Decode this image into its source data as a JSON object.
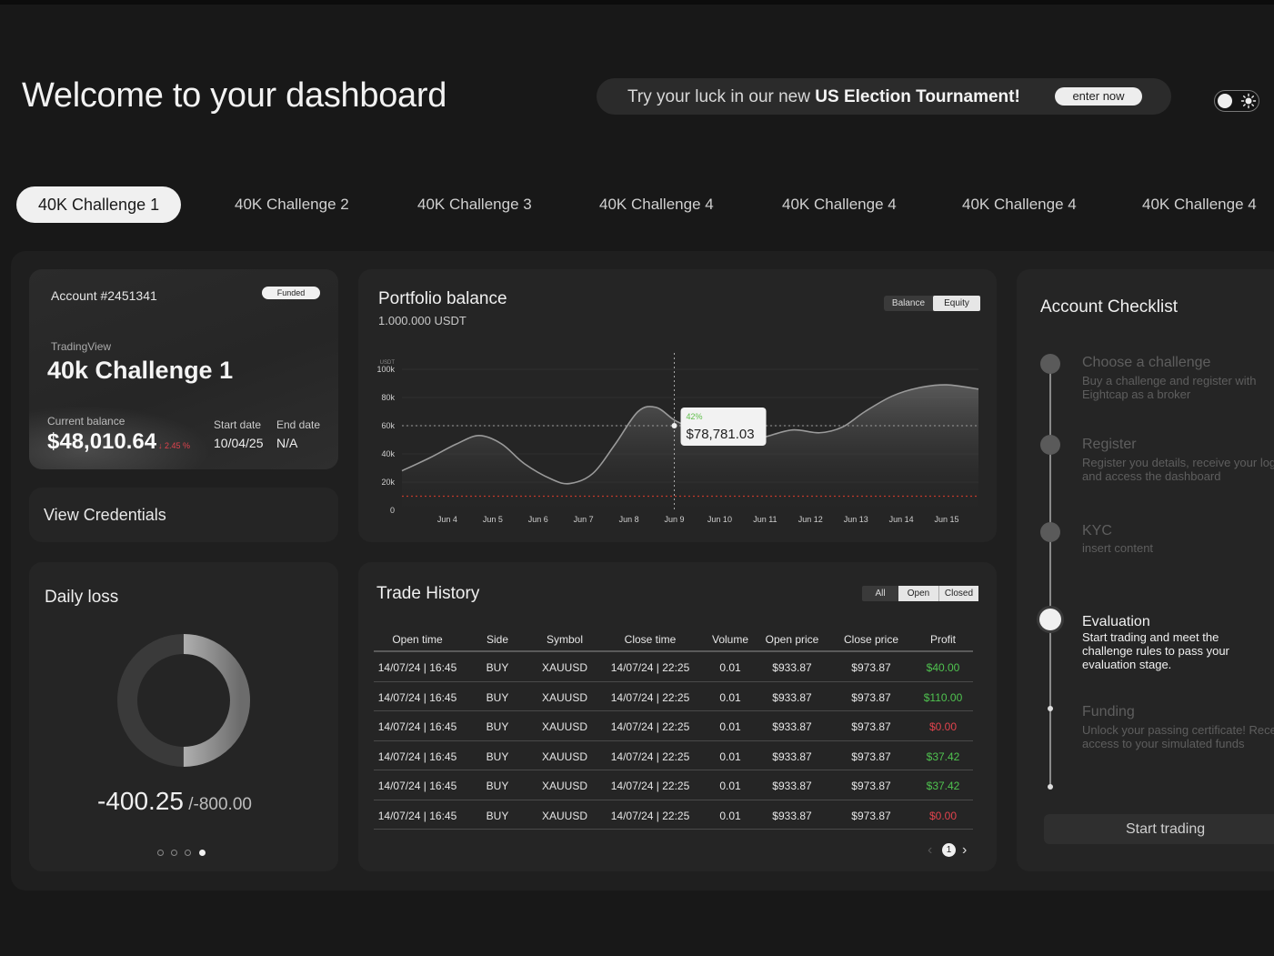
{
  "header": {
    "title": "Welcome to your dashboard",
    "promo_text": "Try your luck in our new ",
    "promo_bold": "US Election Tournament!",
    "promo_button": "enter now"
  },
  "tabs": [
    {
      "label": "40K Challenge 1",
      "active": true
    },
    {
      "label": "40K Challenge 2"
    },
    {
      "label": "40K Challenge 3"
    },
    {
      "label": "40K Challenge 4"
    },
    {
      "label": "40K Challenge 4"
    },
    {
      "label": "40K Challenge 4"
    },
    {
      "label": "40K Challenge 4"
    }
  ],
  "account": {
    "number": "Account #2451341",
    "badge": "Funded",
    "platform": "TradingView",
    "name": "40k Challenge 1",
    "balance_label": "Current balance",
    "balance": "$48,010.64",
    "change": "↓ 2.45 %",
    "start_label": "Start date",
    "start_value": "10/04/25",
    "end_label": "End date",
    "end_value": "N/A"
  },
  "credentials": {
    "label": "View Credentials"
  },
  "daily_loss": {
    "title": "Daily loss",
    "value": "-400.25",
    "max": " /-800.00",
    "fraction": 0.5,
    "pages": 4,
    "current_page": 4
  },
  "portfolio": {
    "title": "Portfolio balance",
    "subtitle": "1.000.000 USDT",
    "toggle": {
      "options": [
        "Balance",
        "Equity"
      ],
      "selected": "Equity"
    },
    "tooltip_pct": "42%",
    "tooltip_value": "$78,781.03",
    "colors": {
      "limit_line": "#c0392b",
      "accent_green": "#5fbf4a"
    }
  },
  "chart_data": {
    "type": "area",
    "x": [
      "Jun 4",
      "Jun 5",
      "Jun 6",
      "Jun 7",
      "Jun 8",
      "Jun 9",
      "Jun 10",
      "Jun 11",
      "Jun 12",
      "Jun 13",
      "Jun 14",
      "Jun 15"
    ],
    "y_tick_labels": [
      "0",
      "20k",
      "40k",
      "60k",
      "80k",
      "100k"
    ],
    "y_unit": "USDT",
    "ylim": [
      0,
      100000
    ],
    "x_start": 3.0,
    "x_end": 15.7,
    "points": [
      {
        "x": 3.0,
        "y": 28000
      },
      {
        "x": 3.6,
        "y": 37000
      },
      {
        "x": 4.2,
        "y": 47000
      },
      {
        "x": 4.7,
        "y": 53000
      },
      {
        "x": 5.2,
        "y": 47000
      },
      {
        "x": 5.7,
        "y": 33000
      },
      {
        "x": 6.3,
        "y": 22000
      },
      {
        "x": 6.7,
        "y": 19000
      },
      {
        "x": 7.2,
        "y": 26000
      },
      {
        "x": 7.7,
        "y": 47000
      },
      {
        "x": 8.2,
        "y": 70000
      },
      {
        "x": 8.6,
        "y": 73000
      },
      {
        "x": 9.0,
        "y": 64000
      },
      {
        "x": 9.4,
        "y": 58000
      },
      {
        "x": 9.9,
        "y": 50000
      },
      {
        "x": 10.5,
        "y": 48000
      },
      {
        "x": 11.0,
        "y": 52000
      },
      {
        "x": 11.6,
        "y": 57000
      },
      {
        "x": 12.2,
        "y": 55000
      },
      {
        "x": 12.7,
        "y": 59000
      },
      {
        "x": 13.2,
        "y": 70000
      },
      {
        "x": 13.8,
        "y": 81000
      },
      {
        "x": 14.4,
        "y": 87000
      },
      {
        "x": 15.0,
        "y": 89000
      },
      {
        "x": 15.7,
        "y": 86000
      }
    ],
    "reference_lines": [
      {
        "y": 60000,
        "style": "dotted"
      },
      {
        "y": 10000,
        "style": "dotted",
        "color": "#c0392b"
      }
    ],
    "crosshair_x": 9.0,
    "grid": true
  },
  "trades": {
    "title": "Trade History",
    "filter": {
      "options": [
        "All",
        "Open",
        "Closed"
      ],
      "selected": "All"
    },
    "columns": [
      "Open time",
      "Side",
      "Symbol",
      "Close time",
      "Volume",
      "Open price",
      "Close price",
      "Profit"
    ],
    "rows": [
      [
        "14/07/24 | 16:45",
        "BUY",
        "XAUUSD",
        "14/07/24 | 22:25",
        "0.01",
        "$933.87",
        "$973.87",
        "$40.00"
      ],
      [
        "14/07/24 | 16:45",
        "BUY",
        "XAUUSD",
        "14/07/24 | 22:25",
        "0.01",
        "$933.87",
        "$973.87",
        "$110.00"
      ],
      [
        "14/07/24 | 16:45",
        "BUY",
        "XAUUSD",
        "14/07/24 | 22:25",
        "0.01",
        "$933.87",
        "$973.87",
        "$0.00"
      ],
      [
        "14/07/24 | 16:45",
        "BUY",
        "XAUUSD",
        "14/07/24 | 22:25",
        "0.01",
        "$933.87",
        "$973.87",
        "$37.42"
      ],
      [
        "14/07/24 | 16:45",
        "BUY",
        "XAUUSD",
        "14/07/24 | 22:25",
        "0.01",
        "$933.87",
        "$973.87",
        "$37.42"
      ],
      [
        "14/07/24 | 16:45",
        "BUY",
        "XAUUSD",
        "14/07/24 | 22:25",
        "0.01",
        "$933.87",
        "$973.87",
        "$0.00"
      ]
    ],
    "profit_colors": [
      "#4fc24f",
      "#4fc24f",
      "#e0434d",
      "#4fc24f",
      "#4fc24f",
      "#e0434d"
    ],
    "page": "1"
  },
  "checklist": {
    "title": "Account Checklist",
    "steps": [
      {
        "title": "Choose a challenge",
        "desc": "Buy a challenge and register with Eightcap as a broker",
        "state": "dim"
      },
      {
        "title": "Register",
        "desc": "Register you details, receive your logins and access the dashboard",
        "state": "dim"
      },
      {
        "title": "KYC",
        "desc": "insert content",
        "state": "dim"
      },
      {
        "title": "Evaluation",
        "desc": "Start trading and meet the challenge rules to pass your evaluation stage.",
        "state": "active"
      },
      {
        "title": "Funding",
        "desc": "Unlock your passing certificate! Receive access to your simulated funds",
        "state": "dim"
      }
    ],
    "button": "Start trading"
  }
}
